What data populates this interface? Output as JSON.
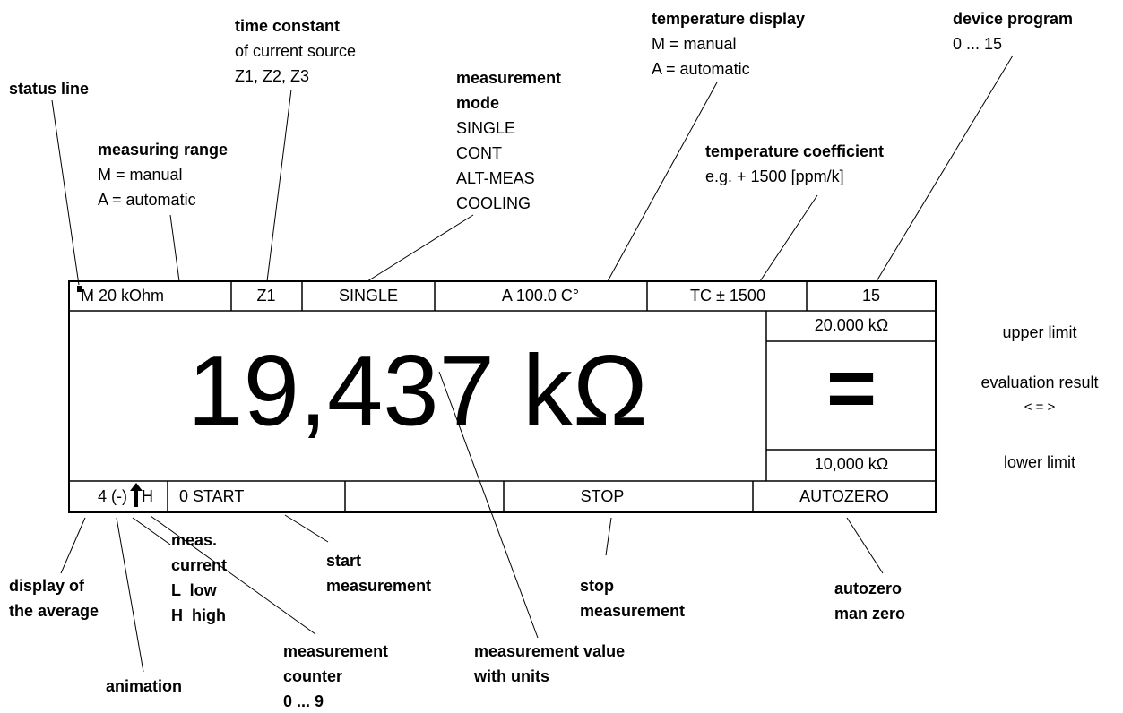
{
  "display": {
    "status_bar": [
      "M 20 kOhm",
      "Z1",
      "SINGLE",
      "A 100.0 C°",
      "TC ± 1500",
      "15"
    ],
    "value": "19,437 kΩ",
    "upper_limit": "20.000 kΩ",
    "result": "=",
    "lower_limit": "10,000 kΩ",
    "function_bar": [
      "4 (-)",
      "H",
      "0 START",
      "STOP",
      "AUTOZERO"
    ]
  },
  "side_labels": [
    "upper limit",
    "evaluation result",
    "< = >",
    "lower limit"
  ],
  "annotations": [
    {
      "heading": [
        "status line"
      ],
      "details": []
    },
    {
      "heading": [
        "measuring range"
      ],
      "details": [
        "M = manual",
        "A = automatic"
      ]
    },
    {
      "heading": [
        "time constant"
      ],
      "details": [
        "of current source",
        "Z1, Z2, Z3"
      ]
    },
    {
      "heading": [
        "measurement",
        "mode"
      ],
      "details": [
        "SINGLE",
        "CONT",
        "ALT-MEAS",
        "COOLING"
      ]
    },
    {
      "heading": [
        "temperature display"
      ],
      "details": [
        "M = manual",
        "A = automatic"
      ]
    },
    {
      "heading": [
        "temperature coefficient"
      ],
      "details": [
        "e.g. + 1500 [ppm/k]"
      ]
    },
    {
      "heading": [
        "device program"
      ],
      "details": [
        "0 ... 15"
      ]
    },
    {
      "heading": [
        "display of",
        "the average"
      ],
      "details": []
    },
    {
      "heading": [
        "animation"
      ],
      "details": []
    },
    {
      "heading": [
        "meas.",
        "current",
        "L  low",
        "H  high"
      ],
      "details": []
    },
    {
      "heading": [
        "start",
        "measurement"
      ],
      "details": []
    },
    {
      "heading": [
        "measurement",
        "counter",
        "0 ... 9"
      ],
      "details": []
    },
    {
      "heading": [
        "measurement value",
        "with units"
      ],
      "details": []
    },
    {
      "heading": [
        "stop",
        "measurement"
      ],
      "details": []
    },
    {
      "heading": [
        "autozero",
        "man zero"
      ],
      "details": []
    }
  ]
}
